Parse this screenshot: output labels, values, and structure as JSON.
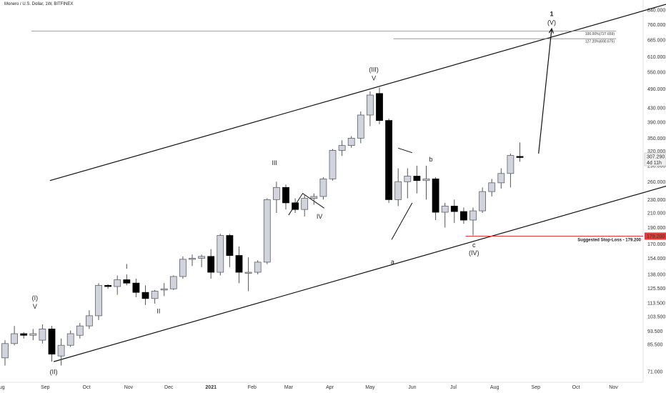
{
  "header": {
    "symbol_title": "Monero / U.S. Dollar, 1W, BITFINEX"
  },
  "colors": {
    "up_fill": "#d1d4dc",
    "down_fill": "#000000",
    "wick": "#555555",
    "stop_line": "#e53935",
    "stop_badge": "#e53935"
  },
  "chart_data": {
    "type": "candlestick",
    "scale": "log",
    "ylim": [
      66,
      900
    ],
    "y_ticks": [
      "71.000",
      "85.500",
      "93.500",
      "103.500",
      "113.500",
      "125.500",
      "138.000",
      "154.000",
      "170.000",
      "190.000",
      "210.000",
      "230.000",
      "260.000",
      "290.000",
      "320.000",
      "350.000",
      "390.000",
      "430.000",
      "490.000",
      "550.000",
      "610.000",
      "685.000",
      "760.000",
      "840.000"
    ],
    "x_labels": [
      {
        "label": "Aug",
        "i": -0.5
      },
      {
        "label": "Sep",
        "i": 4.3
      },
      {
        "label": "Oct",
        "i": 8.7
      },
      {
        "label": "Nov",
        "i": 13.2
      },
      {
        "label": "Dec",
        "i": 17.5
      },
      {
        "label": "2021",
        "i": 22
      },
      {
        "label": "Feb",
        "i": 26.4
      },
      {
        "label": "Mar",
        "i": 30.3
      },
      {
        "label": "Apr",
        "i": 34.7
      },
      {
        "label": "May",
        "i": 39
      },
      {
        "label": "Jun",
        "i": 43.5
      },
      {
        "label": "Jul",
        "i": 47.9
      },
      {
        "label": "Aug",
        "i": 52.3
      },
      {
        "label": "Sep",
        "i": 56.7
      },
      {
        "label": "Oct",
        "i": 61
      },
      {
        "label": "Nov",
        "i": 65
      }
    ],
    "candles": [
      {
        "o": 78,
        "h": 88,
        "l": 74,
        "c": 86
      },
      {
        "o": 86,
        "h": 97,
        "l": 85,
        "c": 92
      },
      {
        "o": 92,
        "h": 93,
        "l": 89,
        "c": 91
      },
      {
        "o": 91,
        "h": 95,
        "l": 88,
        "c": 92
      },
      {
        "o": 88,
        "h": 98,
        "l": 86,
        "c": 95
      },
      {
        "o": 95,
        "h": 97,
        "l": 76,
        "c": 80
      },
      {
        "o": 79,
        "h": 89,
        "l": 74,
        "c": 85
      },
      {
        "o": 85,
        "h": 94,
        "l": 84,
        "c": 92
      },
      {
        "o": 91,
        "h": 99,
        "l": 89,
        "c": 97
      },
      {
        "o": 97,
        "h": 108,
        "l": 95,
        "c": 104
      },
      {
        "o": 104,
        "h": 130,
        "l": 101,
        "c": 128
      },
      {
        "o": 128,
        "h": 129,
        "l": 125,
        "c": 127
      },
      {
        "o": 127,
        "h": 137,
        "l": 120,
        "c": 133
      },
      {
        "o": 133,
        "h": 138,
        "l": 128,
        "c": 130
      },
      {
        "o": 130,
        "h": 134,
        "l": 118,
        "c": 122
      },
      {
        "o": 122,
        "h": 128,
        "l": 112,
        "c": 117
      },
      {
        "o": 117,
        "h": 124,
        "l": 113,
        "c": 123
      },
      {
        "o": 124,
        "h": 130,
        "l": 119,
        "c": 125
      },
      {
        "o": 125,
        "h": 137,
        "l": 124,
        "c": 136
      },
      {
        "o": 136,
        "h": 156,
        "l": 134,
        "c": 153
      },
      {
        "o": 153,
        "h": 158,
        "l": 146,
        "c": 154
      },
      {
        "o": 154,
        "h": 158,
        "l": 145,
        "c": 156
      },
      {
        "o": 156,
        "h": 164,
        "l": 134,
        "c": 140
      },
      {
        "o": 140,
        "h": 182,
        "l": 137,
        "c": 180
      },
      {
        "o": 180,
        "h": 182,
        "l": 145,
        "c": 157
      },
      {
        "o": 157,
        "h": 167,
        "l": 130,
        "c": 140
      },
      {
        "o": 140,
        "h": 155,
        "l": 123,
        "c": 140
      },
      {
        "o": 140,
        "h": 152,
        "l": 138,
        "c": 150
      },
      {
        "o": 150,
        "h": 232,
        "l": 148,
        "c": 230
      },
      {
        "o": 230,
        "h": 260,
        "l": 210,
        "c": 250
      },
      {
        "o": 250,
        "h": 255,
        "l": 215,
        "c": 225
      },
      {
        "o": 225,
        "h": 232,
        "l": 210,
        "c": 215
      },
      {
        "o": 215,
        "h": 238,
        "l": 205,
        "c": 232
      },
      {
        "o": 232,
        "h": 240,
        "l": 222,
        "c": 235
      },
      {
        "o": 235,
        "h": 268,
        "l": 230,
        "c": 265
      },
      {
        "o": 265,
        "h": 325,
        "l": 262,
        "c": 322
      },
      {
        "o": 322,
        "h": 345,
        "l": 310,
        "c": 333
      },
      {
        "o": 333,
        "h": 355,
        "l": 328,
        "c": 350
      },
      {
        "o": 350,
        "h": 420,
        "l": 338,
        "c": 410
      },
      {
        "o": 410,
        "h": 482,
        "l": 380,
        "c": 470
      },
      {
        "o": 475,
        "h": 495,
        "l": 385,
        "c": 395
      },
      {
        "o": 395,
        "h": 400,
        "l": 225,
        "c": 230
      },
      {
        "o": 230,
        "h": 285,
        "l": 220,
        "c": 260
      },
      {
        "o": 260,
        "h": 285,
        "l": 232,
        "c": 270
      },
      {
        "o": 270,
        "h": 290,
        "l": 240,
        "c": 262
      },
      {
        "o": 262,
        "h": 290,
        "l": 230,
        "c": 265
      },
      {
        "o": 265,
        "h": 268,
        "l": 200,
        "c": 211
      },
      {
        "o": 211,
        "h": 225,
        "l": 190,
        "c": 220
      },
      {
        "o": 220,
        "h": 230,
        "l": 196,
        "c": 212
      },
      {
        "o": 212,
        "h": 218,
        "l": 195,
        "c": 200
      },
      {
        "o": 200,
        "h": 218,
        "l": 180,
        "c": 213
      },
      {
        "o": 213,
        "h": 250,
        "l": 210,
        "c": 243
      },
      {
        "o": 243,
        "h": 265,
        "l": 235,
        "c": 258
      },
      {
        "o": 258,
        "h": 285,
        "l": 248,
        "c": 275
      },
      {
        "o": 275,
        "h": 315,
        "l": 250,
        "c": 311
      },
      {
        "o": 309,
        "h": 340,
        "l": 298,
        "c": 307
      }
    ],
    "channel_upper": [
      {
        "i": 4.8,
        "p": 262
      },
      {
        "i": 71,
        "p": 880
      }
    ],
    "channel_lower": [
      {
        "i": 5.2,
        "p": 76
      },
      {
        "i": 71,
        "p": 254
      }
    ],
    "projection_arrow": [
      {
        "i": 57,
        "p": 315
      },
      {
        "i": 58.4,
        "p": 740
      }
    ],
    "fib_levels": [
      {
        "label": "100.00%(727.659)",
        "price": 727.659,
        "i_start": 2.8
      },
      {
        "label": "127.20%(690.675)",
        "price": 690.675,
        "i_start": 41.5
      }
    ],
    "stop_loss": {
      "price": 179.2,
      "i_start": 49.2,
      "label": "Suggested Stop-Loss - 179.200",
      "badge": "179.200"
    },
    "current_price": {
      "price": 307.29,
      "badge": "307.290",
      "countdown": "4d 11h"
    },
    "triangles": [
      {
        "points": [
          {
            "i": 30.3,
            "p": 207
          },
          {
            "i": 31.8,
            "p": 240
          },
          {
            "i": 34.1,
            "p": 217
          }
        ]
      },
      {
        "points": [
          {
            "i": 41.3,
            "p": 175
          },
          {
            "i": 43.5,
            "p": 225
          }
        ]
      },
      {
        "points": [
          {
            "i": 42,
            "p": 327
          },
          {
            "i": 43.5,
            "p": 317
          }
        ]
      }
    ],
    "wave_labels": [
      {
        "text": "(I)",
        "i": 3.2,
        "p": 106,
        "dy": -18
      },
      {
        "text": "V",
        "i": 3.2,
        "p": 106,
        "dy": -6
      },
      {
        "text": "(II)",
        "i": 5.2,
        "p": 74,
        "dy": 12
      },
      {
        "text": "I",
        "i": 13,
        "p": 138,
        "dy": -8
      },
      {
        "text": "II",
        "i": 16.4,
        "p": 112,
        "dy": 12
      },
      {
        "text": "III",
        "i": 28.8,
        "p": 280,
        "dy": -8
      },
      {
        "text": "IV",
        "i": 33.6,
        "p": 212,
        "dy": 10
      },
      {
        "text": "(III)",
        "i": 39.4,
        "p": 500,
        "dy": -20
      },
      {
        "text": "V",
        "i": 39.4,
        "p": 500,
        "dy": -8
      },
      {
        "text": "a",
        "i": 41.4,
        "p": 157,
        "dy": 12
      },
      {
        "text": "b",
        "i": 45.5,
        "p": 290,
        "dy": -6
      },
      {
        "text": "c",
        "i": 50.1,
        "p": 178,
        "dy": 14
      },
      {
        "text": "(IV)",
        "i": 50.1,
        "p": 178,
        "dy": 25
      },
      {
        "text": "(V)",
        "i": 58.4,
        "p": 760,
        "dy": 0
      },
      {
        "text": "1",
        "i": 58.4,
        "p": 760,
        "dy": -12
      }
    ]
  }
}
